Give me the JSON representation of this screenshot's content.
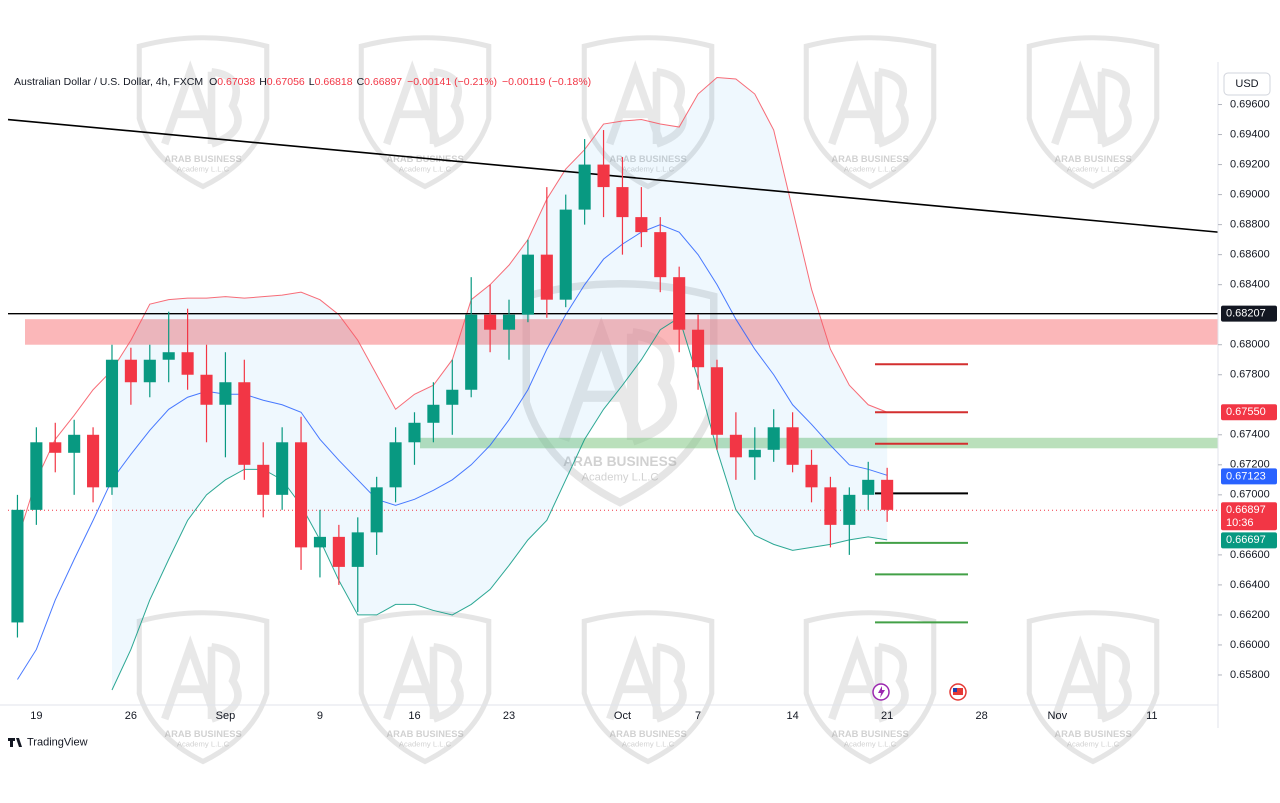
{
  "chart_data": {
    "type": "candlestick",
    "title": "Australian Dollar / U.S. Dollar, 4h, FXCM",
    "ohlc_header": [
      {
        "key": "O",
        "value": "0.67038"
      },
      {
        "key": "H",
        "value": "0.67056"
      },
      {
        "key": "L",
        "value": "0.66818"
      },
      {
        "key": "C",
        "value": "0.66897"
      }
    ],
    "change_texts": [
      "−0.00141 (−0.21%)",
      "−0.00119 (−0.18%)"
    ],
    "currency": "USD",
    "brand": "TradingView",
    "watermark": [
      "ARAB BUSINESS",
      "Academy L.L.C"
    ],
    "categories": [
      null,
      "19",
      null,
      null,
      null,
      null,
      "26",
      null,
      null,
      null,
      null,
      "Sep",
      null,
      null,
      null,
      null,
      "9",
      null,
      null,
      null,
      null,
      "16",
      null,
      null,
      null,
      null,
      "23",
      null,
      null,
      null,
      null,
      null,
      "Oct",
      null,
      null,
      null,
      "7",
      null,
      null,
      null,
      null,
      "14",
      null,
      null,
      null,
      null,
      "21",
      null,
      null,
      null,
      null,
      "28",
      null,
      null,
      null,
      "Nov",
      null,
      null,
      null,
      null,
      "11",
      null,
      null,
      null
    ],
    "open": [
      0.6615,
      0.669,
      0.6735,
      0.6728,
      0.674,
      0.6705,
      0.679,
      0.6775,
      0.679,
      0.6795,
      0.678,
      0.676,
      0.6775,
      0.672,
      0.67,
      0.6735,
      0.6665,
      0.6672,
      0.6652,
      0.6675,
      0.6705,
      0.6735,
      0.6748,
      0.676,
      0.677,
      0.682,
      0.681,
      0.682,
      0.686,
      0.683,
      0.689,
      0.692,
      0.6905,
      0.6885,
      0.6875,
      0.6845,
      0.681,
      0.6785,
      0.674,
      0.6725,
      0.673,
      0.6745,
      0.672,
      0.6705,
      0.668,
      0.67,
      0.671,
      null,
      null,
      null,
      null,
      null,
      null,
      null,
      null,
      null,
      null,
      null,
      null,
      null,
      null,
      null,
      null,
      null
    ],
    "high": [
      0.67,
      0.6745,
      0.6748,
      0.675,
      0.6745,
      0.68,
      0.6798,
      0.68,
      0.6822,
      0.6824,
      0.68,
      0.6795,
      0.679,
      0.6735,
      0.6745,
      0.6752,
      0.669,
      0.668,
      0.6685,
      0.6712,
      0.6745,
      0.6755,
      0.6775,
      0.679,
      0.6845,
      0.684,
      0.683,
      0.687,
      0.6905,
      0.69,
      0.6937,
      0.6943,
      0.6925,
      0.6905,
      0.6885,
      0.6852,
      0.682,
      0.679,
      0.6755,
      0.6745,
      0.6757,
      0.6755,
      0.673,
      0.6712,
      0.6705,
      0.6722,
      0.6718,
      null,
      null,
      null,
      null,
      null,
      null,
      null,
      null,
      null,
      null,
      null,
      null,
      null,
      null,
      null,
      null,
      null
    ],
    "low": [
      0.6605,
      0.668,
      0.6715,
      0.67,
      0.6695,
      0.67,
      0.676,
      0.6765,
      0.6775,
      0.677,
      0.6735,
      0.6725,
      0.671,
      0.6685,
      0.669,
      0.665,
      0.6645,
      0.664,
      0.6622,
      0.666,
      0.6695,
      0.672,
      0.6735,
      0.674,
      0.6765,
      0.6795,
      0.679,
      0.6815,
      0.6818,
      0.6825,
      0.688,
      0.6885,
      0.686,
      0.6865,
      0.6835,
      0.6795,
      0.677,
      0.673,
      0.671,
      0.671,
      0.6722,
      0.6715,
      0.6695,
      0.6665,
      0.666,
      0.669,
      0.6682,
      null,
      null,
      null,
      null,
      null,
      null,
      null,
      null,
      null,
      null,
      null,
      null,
      null,
      null,
      null,
      null,
      null
    ],
    "close": [
      0.669,
      0.6735,
      0.6728,
      0.674,
      0.6705,
      0.679,
      0.6775,
      0.679,
      0.6795,
      0.678,
      0.676,
      0.6775,
      0.672,
      0.67,
      0.6735,
      0.6665,
      0.6672,
      0.6652,
      0.6675,
      0.6705,
      0.6735,
      0.6748,
      0.676,
      0.677,
      0.682,
      0.681,
      0.682,
      0.686,
      0.683,
      0.689,
      0.692,
      0.6905,
      0.6885,
      0.6875,
      0.6845,
      0.681,
      0.6785,
      0.674,
      0.6725,
      0.673,
      0.6745,
      0.672,
      0.6705,
      0.668,
      0.67,
      0.671,
      0.669,
      null,
      null,
      null,
      null,
      null,
      null,
      null,
      null,
      null,
      null,
      null,
      null,
      null,
      null,
      null,
      null,
      null
    ],
    "up_color": "#089981",
    "down_color": "#f23645",
    "bands": [
      {
        "color": "#f7525f",
        "values": [
          0.667,
          0.671,
          0.6737,
          0.6753,
          0.677,
          0.6783,
          0.6803,
          0.6827,
          0.683,
          0.6831,
          0.6831,
          0.6832,
          0.6831,
          0.6832,
          0.6833,
          0.6835,
          0.683,
          0.682,
          0.6803,
          0.678,
          0.6757,
          0.6767,
          0.6773,
          0.679,
          0.683,
          0.684,
          0.6853,
          0.687,
          0.6897,
          0.6917,
          0.693,
          0.6947,
          0.6949,
          0.695,
          0.6947,
          0.6945,
          0.6967,
          0.6978,
          0.6977,
          0.6967,
          0.6943,
          0.689,
          0.6837,
          0.6797,
          0.6773,
          0.676,
          0.6755,
          null,
          null,
          null,
          null,
          null,
          null,
          null,
          null,
          null,
          null,
          null,
          null,
          null,
          null,
          null,
          null,
          null
        ]
      },
      {
        "color": "#2962ff",
        "values": [
          0.6577,
          0.6597,
          0.663,
          0.6657,
          0.6683,
          0.671,
          0.6727,
          0.6743,
          0.6757,
          0.6765,
          0.6769,
          0.6767,
          0.6767,
          0.6763,
          0.676,
          0.6755,
          0.6737,
          0.6723,
          0.671,
          0.6697,
          0.6693,
          0.6697,
          0.6703,
          0.671,
          0.672,
          0.6733,
          0.675,
          0.677,
          0.6797,
          0.682,
          0.684,
          0.6857,
          0.6867,
          0.6875,
          0.688,
          0.6875,
          0.686,
          0.684,
          0.6817,
          0.6797,
          0.678,
          0.676,
          0.6747,
          0.6733,
          0.672,
          0.6717,
          0.6713,
          null,
          null,
          null,
          null,
          null,
          null,
          null,
          null,
          null,
          null,
          null,
          null,
          null,
          null,
          null,
          null,
          null
        ]
      },
      {
        "color": "#089981",
        "values": [
          null,
          null,
          null,
          null,
          null,
          0.657,
          0.6597,
          0.663,
          0.6657,
          0.6683,
          0.67,
          0.671,
          0.6717,
          0.6717,
          0.671,
          0.6693,
          0.667,
          0.6643,
          0.662,
          0.662,
          0.6627,
          0.6627,
          0.6623,
          0.662,
          0.6627,
          0.6637,
          0.6653,
          0.667,
          0.6683,
          0.671,
          0.6737,
          0.6757,
          0.6773,
          0.679,
          0.681,
          0.6818,
          0.6777,
          0.673,
          0.669,
          0.6673,
          0.6667,
          0.6663,
          0.6665,
          0.6667,
          0.667,
          0.6672,
          0.667,
          null,
          null,
          null,
          null,
          null,
          null,
          null,
          null,
          null,
          null,
          null,
          null,
          null,
          null,
          null,
          null,
          null
        ]
      }
    ],
    "band_fill": "#2196f3",
    "trendline": {
      "start": 0.695,
      "end": 0.6875,
      "color": "#000000"
    },
    "horizontal_line": {
      "value": 0.68207,
      "color": "#000000"
    },
    "zones": [
      {
        "from": 0.68,
        "to": 0.6817,
        "color": "#f77c80"
      },
      {
        "from": 0.6731,
        "to": 0.6738,
        "color": "#81c784"
      }
    ],
    "levels": [
      {
        "value": 0.6787,
        "color": "#d32f2f"
      },
      {
        "value": 0.6755,
        "color": "#d32f2f"
      },
      {
        "value": 0.6734,
        "color": "#d32f2f"
      },
      {
        "value": 0.6701,
        "color": "#000000"
      },
      {
        "value": 0.6668,
        "color": "#43a047"
      },
      {
        "value": 0.6647,
        "color": "#43a047"
      },
      {
        "value": 0.6615,
        "color": "#43a047"
      }
    ],
    "current_price": 0.66897,
    "price_tags": [
      {
        "value": 0.68207,
        "label": "0.68207",
        "color": "#131722"
      },
      {
        "value": 0.6755,
        "label": "0.67550",
        "color": "#f23645"
      },
      {
        "value": 0.67123,
        "label": "0.67123",
        "color": "#2962ff"
      },
      {
        "value": 0.66897,
        "label": "0.66897",
        "color": "#f23645",
        "timer": "10:36"
      },
      {
        "value": 0.66697,
        "label": "0.66697",
        "color": "#089981"
      }
    ],
    "ylim": [
      0.656,
      0.6983
    ],
    "yticks": [
      {
        "value": 0.696,
        "label": "0.69600"
      },
      {
        "value": 0.694,
        "label": "0.69400"
      },
      {
        "value": 0.692,
        "label": "0.69200"
      },
      {
        "value": 0.69,
        "label": "0.69000"
      },
      {
        "value": 0.688,
        "label": "0.68800"
      },
      {
        "value": 0.686,
        "label": "0.68600"
      },
      {
        "value": 0.684,
        "label": "0.68400"
      },
      {
        "value": 0.68,
        "label": "0.68000"
      },
      {
        "value": 0.678,
        "label": "0.67800"
      },
      {
        "value": 0.674,
        "label": "0.67400"
      },
      {
        "value": 0.672,
        "label": "0.67200"
      },
      {
        "value": 0.67,
        "label": "0.67000"
      },
      {
        "value": 0.666,
        "label": "0.66600"
      },
      {
        "value": 0.664,
        "label": "0.66400"
      },
      {
        "value": 0.662,
        "label": "0.66200"
      },
      {
        "value": 0.66,
        "label": "0.66000"
      },
      {
        "value": 0.658,
        "label": "0.65800"
      }
    ],
    "grid": false
  }
}
